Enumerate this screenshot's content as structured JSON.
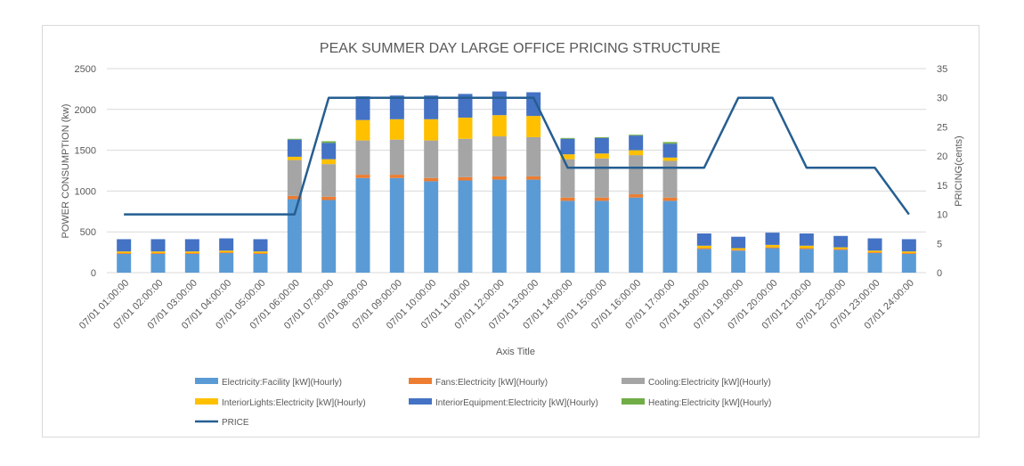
{
  "chart_data": {
    "type": "bar",
    "stacked": true,
    "title": "PEAK SUMMER DAY LARGE OFFICE PRICING STRUCTURE",
    "xlabel": "Axis Title",
    "ylabel": "POWER CONSUMPTION  (kw)",
    "y2label": "PRICING(cents)",
    "ylim": [
      0,
      2500
    ],
    "y2lim": [
      0,
      35
    ],
    "yticks": [
      "0",
      "500",
      "1000",
      "1500",
      "2000",
      "2500"
    ],
    "y2ticks": [
      "0",
      "5",
      "10",
      "15",
      "20",
      "25",
      "30",
      "35"
    ],
    "grid": true,
    "legend_position": "bottom",
    "categories": [
      "07/01  01:00:00",
      "07/01  02:00:00",
      "07/01  03:00:00",
      "07/01  04:00:00",
      "07/01  05:00:00",
      "07/01  06:00:00",
      "07/01  07:00:00",
      "07/01  08:00:00",
      "07/01  09:00:00",
      "07/01  10:00:00",
      "07/01  11:00:00",
      "07/01  12:00:00",
      "07/01  13:00:00",
      "07/01  14:00:00",
      "07/01  15:00:00",
      "07/01  16:00:00",
      "07/01  17:00:00",
      "07/01  18:00:00",
      "07/01  19:00:00",
      "07/01  20:00:00",
      "07/01  21:00:00",
      "07/01  22:00:00",
      "07/01  23:00:00",
      "07/01  24:00:00"
    ],
    "series": [
      {
        "name": "Electricity:Facility [kW](Hourly)",
        "color": "#5b9bd5",
        "values": [
          230,
          230,
          230,
          240,
          230,
          900,
          890,
          1160,
          1160,
          1120,
          1130,
          1140,
          1140,
          880,
          880,
          920,
          880,
          290,
          270,
          300,
          290,
          280,
          240,
          230
        ]
      },
      {
        "name": "Fans:Electricity [kW](Hourly)",
        "color": "#ed7d31",
        "values": [
          10,
          10,
          10,
          10,
          10,
          40,
          40,
          40,
          40,
          40,
          40,
          40,
          40,
          40,
          40,
          40,
          40,
          10,
          10,
          10,
          10,
          10,
          10,
          10
        ]
      },
      {
        "name": "Cooling:Electricity [kW](Hourly)",
        "color": "#a5a5a5",
        "values": [
          0,
          0,
          0,
          0,
          0,
          440,
          400,
          420,
          430,
          460,
          470,
          490,
          480,
          470,
          480,
          480,
          450,
          0,
          0,
          0,
          0,
          0,
          0,
          0
        ]
      },
      {
        "name": "InteriorLights:Electricity [kW](Hourly)",
        "color": "#ffc000",
        "values": [
          20,
          20,
          20,
          20,
          20,
          40,
          60,
          250,
          250,
          260,
          260,
          260,
          260,
          60,
          60,
          60,
          40,
          30,
          20,
          30,
          30,
          20,
          20,
          20
        ]
      },
      {
        "name": "InteriorEquipment:Electricity [kW](Hourly)",
        "color": "#4472c4",
        "values": [
          150,
          150,
          150,
          150,
          150,
          210,
          200,
          290,
          290,
          290,
          290,
          290,
          290,
          190,
          190,
          180,
          170,
          150,
          140,
          150,
          150,
          140,
          150,
          150
        ]
      },
      {
        "name": "Heating:Electricity [kW](Hourly)",
        "color": "#70ad47",
        "values": [
          0,
          0,
          0,
          0,
          0,
          10,
          20,
          0,
          0,
          0,
          0,
          0,
          0,
          10,
          10,
          10,
          20,
          0,
          0,
          0,
          0,
          0,
          0,
          0
        ]
      }
    ],
    "line_series": {
      "name": "PRICE",
      "color": "#255e91",
      "axis": "secondary",
      "values": [
        10,
        10,
        10,
        10,
        10,
        10,
        30,
        30,
        30,
        30,
        30,
        30,
        30,
        18,
        18,
        18,
        18,
        18,
        30,
        30,
        18,
        18,
        18,
        10
      ]
    }
  }
}
